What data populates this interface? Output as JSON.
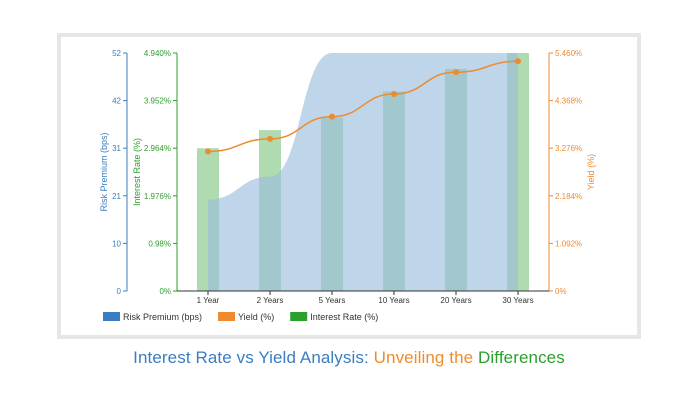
{
  "colors": {
    "risk_premium": "#3b7dbf",
    "risk_area": "#9bbfdf",
    "yield": "#ee8b2f",
    "interest_rate": "#2ca02c",
    "interest_bar": "#b0dbb0"
  },
  "caption": {
    "part1": "Interest Rate vs Yield Analysis: ",
    "part2": "Unveiling the ",
    "part3": "Differences"
  },
  "chart_data": {
    "type": "bar",
    "categories": [
      "1 Year",
      "2 Years",
      "5 Years",
      "10 Years",
      "20 Years",
      "30 Years"
    ],
    "series": [
      {
        "name": "Interest Rate (%)",
        "type": "bar",
        "axis": "left-inner",
        "values": [
          2.964,
          3.34,
          3.6,
          4.14,
          4.61,
          4.94
        ]
      },
      {
        "name": "Risk Premium (bps)",
        "type": "area",
        "axis": "left-outer",
        "values": [
          20,
          25,
          52,
          52,
          52,
          52
        ]
      },
      {
        "name": "Yield (%)",
        "type": "line",
        "axis": "right",
        "values": [
          3.2,
          3.49,
          4.0,
          4.52,
          5.02,
          5.27
        ]
      }
    ],
    "axes": {
      "risk_premium": {
        "label": "Risk Premium (bps)",
        "ylim": [
          0,
          52
        ],
        "ticks": [
          "0",
          "10",
          "21",
          "31",
          "42",
          "52"
        ]
      },
      "interest_rate": {
        "label": "Interest Rate (%)",
        "ylim": [
          0,
          4.94
        ],
        "ticks": [
          "0%",
          "0.98%",
          "1.976%",
          "2.964%",
          "3.952%",
          "4.940%"
        ]
      },
      "yield": {
        "label": "Yield (%)",
        "ylim": [
          0,
          5.46
        ],
        "ticks": [
          "0%",
          "1.092%",
          "2.184%",
          "3.276%",
          "4.368%",
          "5.460%"
        ]
      }
    },
    "legend": {
      "position": "bottom-left",
      "items": [
        "Risk Premium (bps)",
        "Yield (%)",
        "Interest Rate (%)"
      ]
    },
    "grid": false
  }
}
